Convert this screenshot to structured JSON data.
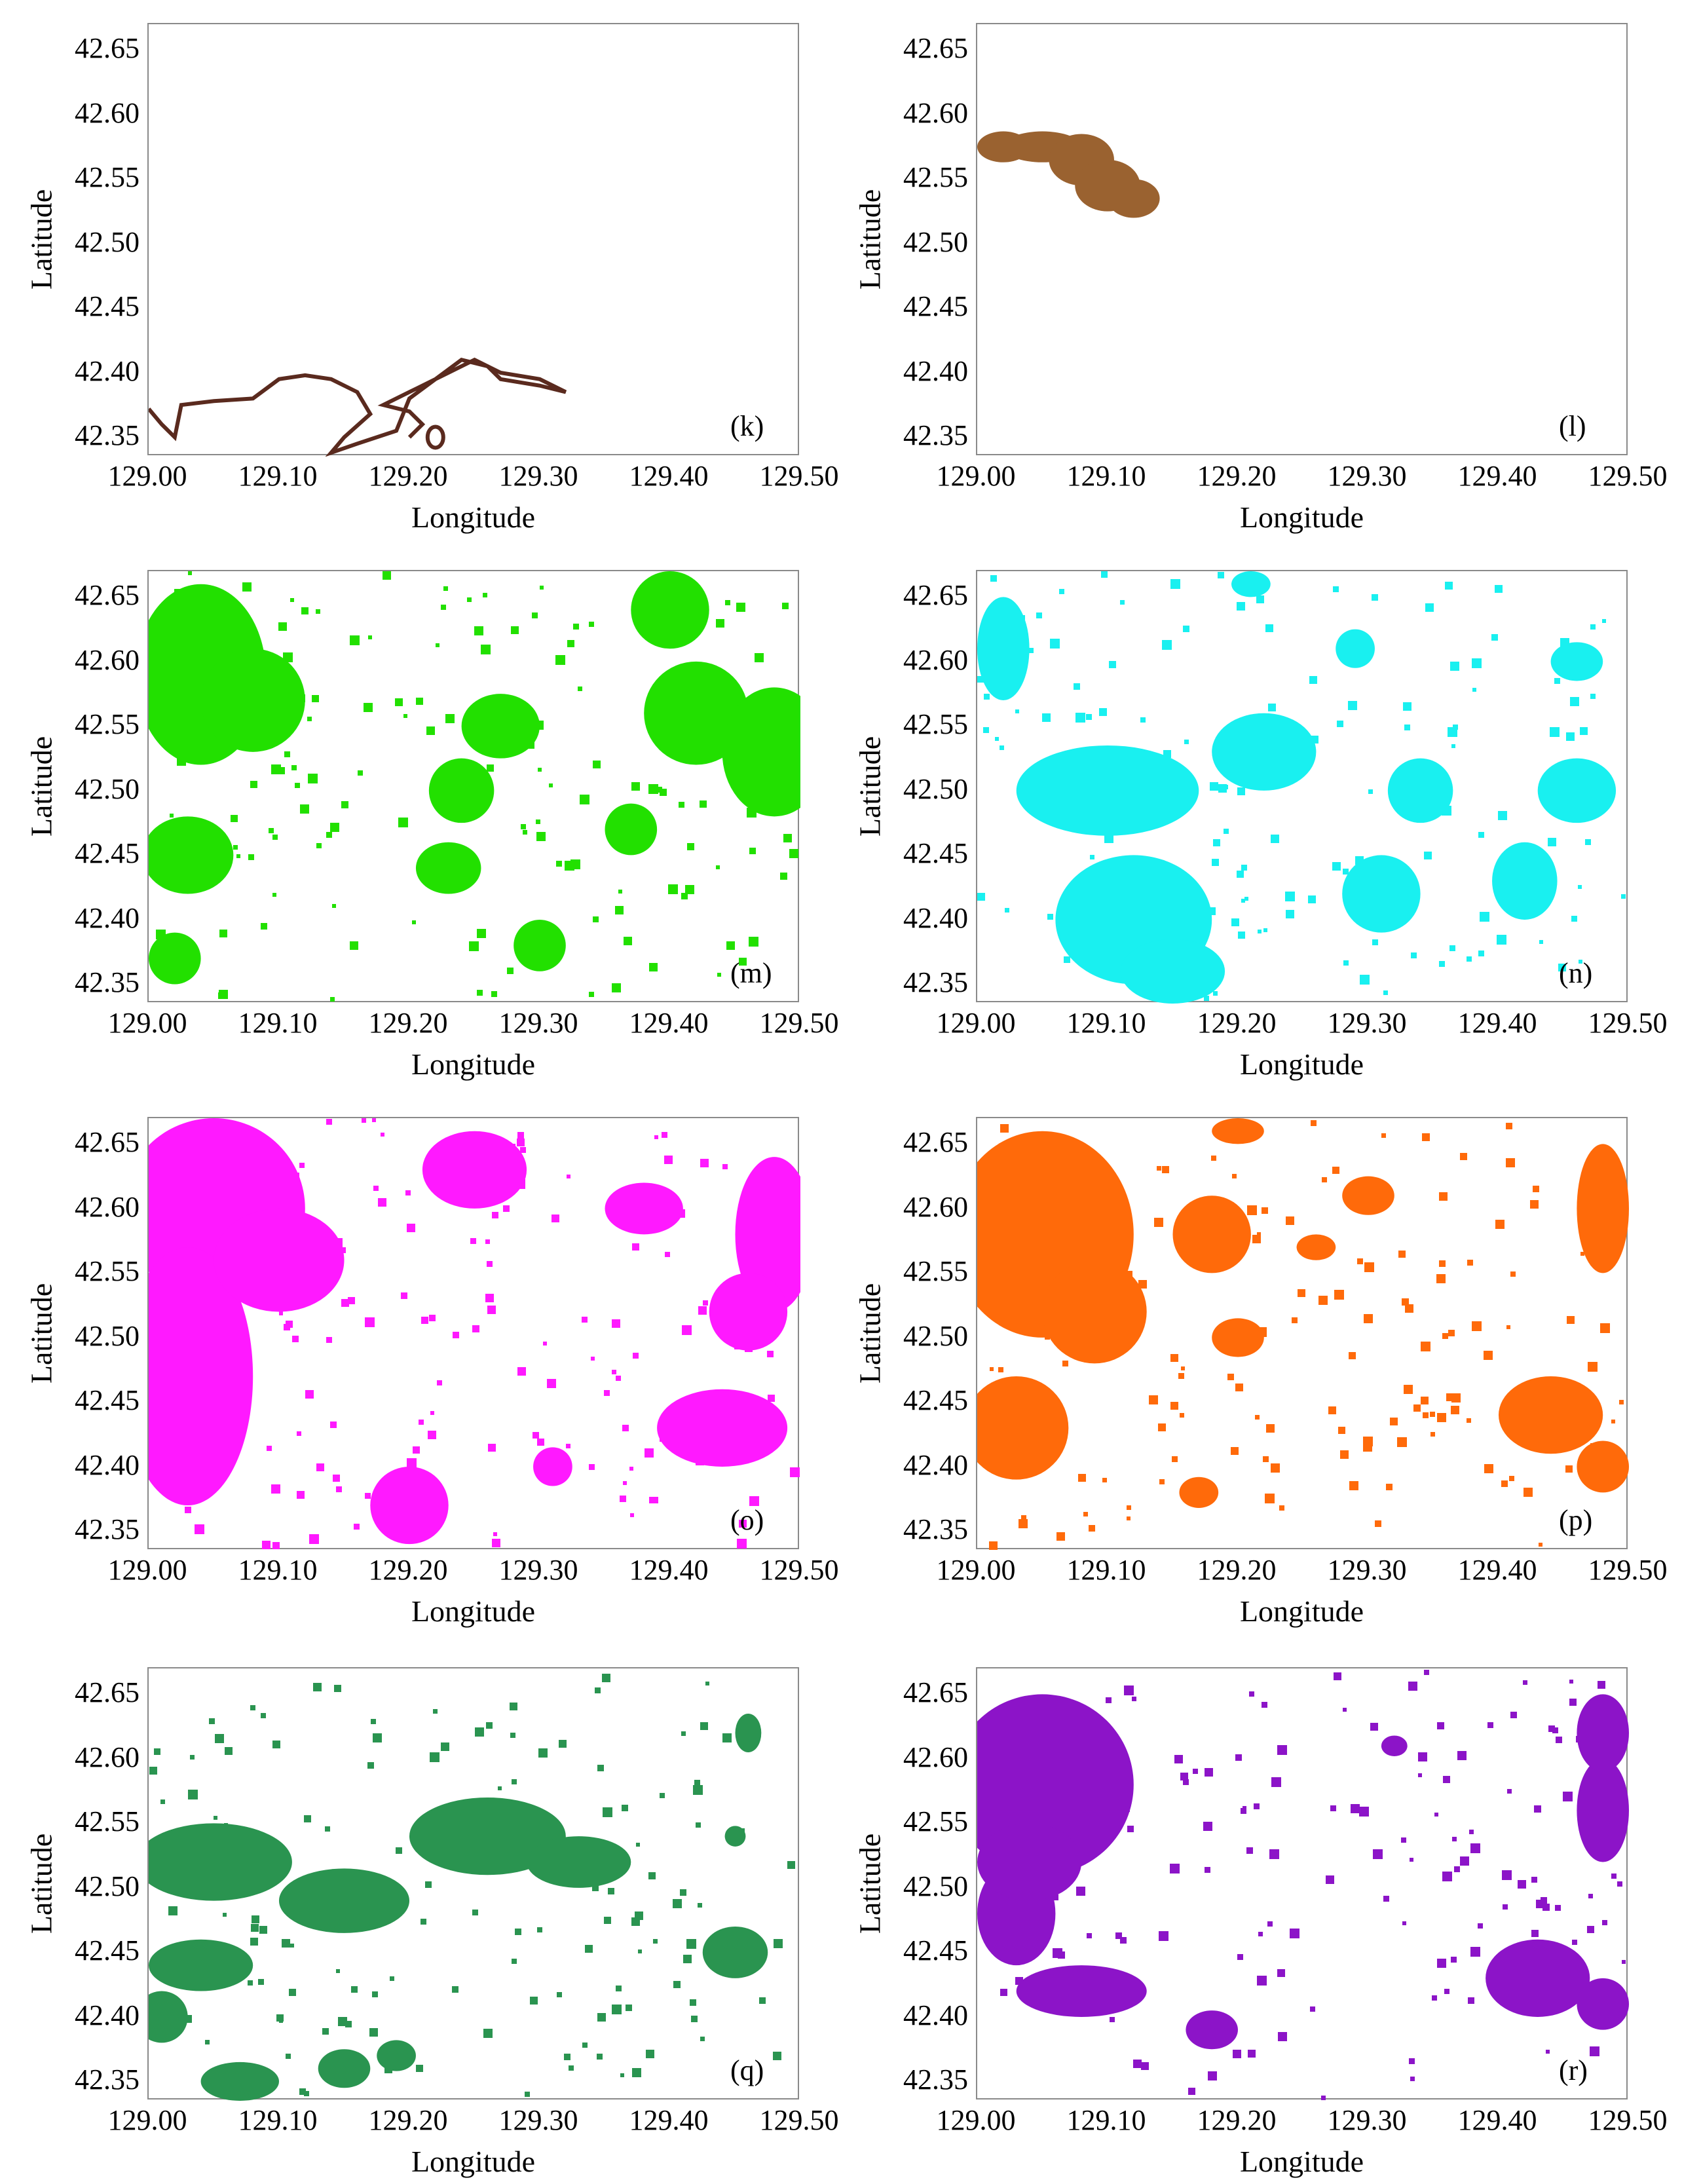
{
  "figure": {
    "panels": [
      {
        "id": "k",
        "label": "(k)",
        "color": "#5a2a1e",
        "style": "outline"
      },
      {
        "id": "l",
        "label": "(l)",
        "color": "#9a6230",
        "style": "fill"
      },
      {
        "id": "m",
        "label": "(m)",
        "color": "#22e000",
        "style": "fill"
      },
      {
        "id": "n",
        "label": "(n)",
        "color": "#19f0f0",
        "style": "fill"
      },
      {
        "id": "o",
        "label": "(o)",
        "color": "#ff19ff",
        "style": "fill"
      },
      {
        "id": "p",
        "label": "(p)",
        "color": "#ff6a0a",
        "style": "fill"
      },
      {
        "id": "q",
        "label": "(q)",
        "color": "#2a9450",
        "style": "fill"
      },
      {
        "id": "r",
        "label": "(r)",
        "color": "#8c14c8",
        "style": "fill"
      }
    ],
    "x_axis": {
      "label": "Longitude",
      "ticks": [
        "129.00",
        "129.10",
        "129.20",
        "129.30",
        "129.40",
        "129.50"
      ],
      "range": [
        129.0,
        129.5
      ]
    },
    "y_axis": {
      "label": "Latitude",
      "ticks": [
        "42.65",
        "42.60",
        "42.55",
        "42.50",
        "42.45",
        "42.40",
        "42.35"
      ],
      "range": [
        42.335,
        42.67
      ]
    }
  }
}
